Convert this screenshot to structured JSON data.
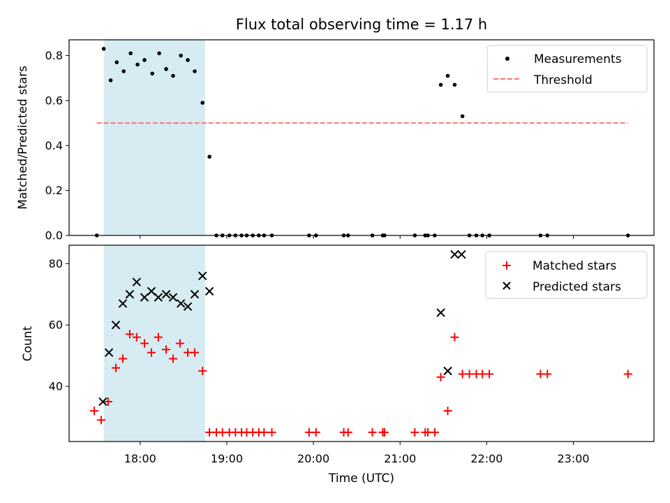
{
  "chart_data": [
    {
      "type": "scatter",
      "title": "Flux total observing time = 1.17 h",
      "xlabel": "",
      "ylabel": "Matched/Predicted stars",
      "xlim": [
        17.18,
        23.93
      ],
      "ylim": [
        0,
        0.87
      ],
      "yticks": [
        0.0,
        0.2,
        0.4,
        0.6,
        0.8
      ],
      "ytick_labels": [
        "0.0",
        "0.2",
        "0.4",
        "0.6",
        "0.8"
      ],
      "shaded_region": {
        "x_start": 17.58,
        "x_end": 18.75,
        "color": "#add8e6"
      },
      "legend_position": "top-right",
      "series": [
        {
          "name": "Measurements",
          "marker": "dot",
          "color": "#000000",
          "x": [
            17.5,
            17.58,
            17.66,
            17.73,
            17.81,
            17.89,
            17.97,
            18.05,
            18.14,
            18.22,
            18.3,
            18.38,
            18.47,
            18.55,
            18.63,
            18.72,
            18.8,
            18.88,
            18.95,
            19.03,
            19.1,
            19.17,
            19.23,
            19.3,
            19.37,
            19.43,
            19.52,
            19.95,
            20.03,
            20.35,
            20.4,
            20.68,
            20.8,
            20.82,
            21.17,
            21.29,
            21.32,
            21.4,
            21.47,
            21.55,
            21.63,
            21.72,
            21.8,
            21.88,
            21.95,
            22.03,
            22.62,
            22.7,
            23.63
          ],
          "y": [
            0.0,
            0.83,
            0.69,
            0.77,
            0.73,
            0.81,
            0.76,
            0.78,
            0.72,
            0.81,
            0.74,
            0.71,
            0.8,
            0.78,
            0.73,
            0.59,
            0.35,
            0.0,
            0.0,
            0.0,
            0.0,
            0.0,
            0.0,
            0.0,
            0.0,
            0.0,
            0.0,
            0.0,
            0.0,
            0.0,
            0.0,
            0.0,
            0.0,
            0.0,
            0.0,
            0.0,
            0.0,
            0.0,
            0.67,
            0.71,
            0.67,
            0.53,
            0.0,
            0.0,
            0.0,
            0.0,
            0.0,
            0.0,
            0.0
          ]
        },
        {
          "name": "Threshold",
          "marker": "dashed-line",
          "color": "#ff7373",
          "x": [
            17.5,
            23.63
          ],
          "y": [
            0.5,
            0.5
          ]
        }
      ]
    },
    {
      "type": "scatter",
      "title": "",
      "xlabel": "Time (UTC)",
      "ylabel": "Count",
      "xlim": [
        17.18,
        23.93
      ],
      "ylim": [
        22,
        86
      ],
      "yticks": [
        40,
        60,
        80
      ],
      "ytick_labels": [
        "40",
        "60",
        "80"
      ],
      "xticks": [
        18,
        19,
        20,
        21,
        22,
        23
      ],
      "xtick_labels": [
        "18:00",
        "19:00",
        "20:00",
        "21:00",
        "22:00",
        "23:00"
      ],
      "shaded_region": {
        "x_start": 17.58,
        "x_end": 18.75,
        "color": "#add8e6"
      },
      "legend_position": "top-right",
      "series": [
        {
          "name": "Matched stars",
          "marker": "plus",
          "color": "#ff0000",
          "x": [
            17.47,
            17.55,
            17.63,
            17.72,
            17.8,
            17.88,
            17.96,
            18.05,
            18.13,
            18.21,
            18.3,
            18.38,
            18.46,
            18.55,
            18.63,
            18.72,
            18.8,
            18.88,
            18.95,
            19.03,
            19.1,
            19.17,
            19.23,
            19.3,
            19.37,
            19.43,
            19.52,
            19.95,
            20.03,
            20.35,
            20.4,
            20.68,
            20.8,
            20.82,
            21.17,
            21.29,
            21.32,
            21.4,
            21.47,
            21.55,
            21.63,
            21.72,
            21.8,
            21.88,
            21.95,
            22.03,
            22.62,
            22.7,
            23.63
          ],
          "y": [
            32,
            29,
            35,
            46,
            49,
            57,
            56,
            54,
            51,
            56,
            52,
            49,
            54,
            51,
            51,
            45,
            25,
            25,
            25,
            25,
            25,
            25,
            25,
            25,
            25,
            25,
            25,
            25,
            25,
            25,
            25,
            25,
            25,
            25,
            25,
            25,
            25,
            25,
            43,
            32,
            56,
            44,
            44,
            44,
            44,
            44,
            44,
            44,
            44
          ]
        },
        {
          "name": "Predicted stars",
          "marker": "x",
          "color": "#000000",
          "x": [
            17.57,
            17.64,
            17.72,
            17.8,
            17.88,
            17.96,
            18.05,
            18.13,
            18.21,
            18.3,
            18.38,
            18.47,
            18.55,
            18.63,
            18.72,
            18.8,
            21.47,
            21.55,
            21.63,
            21.71
          ],
          "y": [
            35,
            51,
            60,
            67,
            70,
            74,
            69,
            71,
            69,
            70,
            69,
            67,
            66,
            70,
            76,
            71,
            64,
            45,
            83,
            83
          ]
        }
      ]
    }
  ]
}
